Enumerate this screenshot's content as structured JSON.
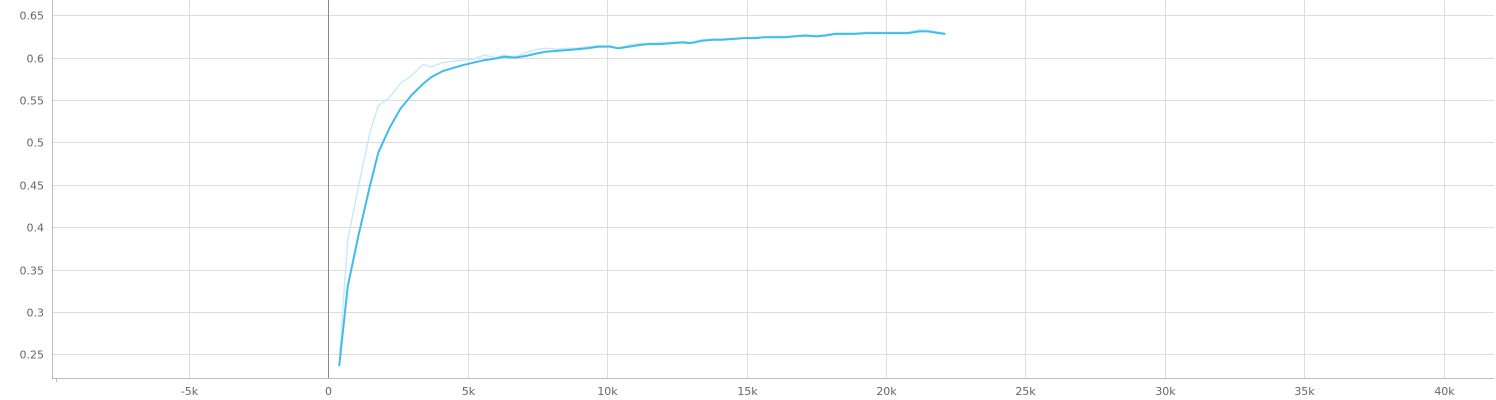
{
  "chart_data": {
    "type": "line",
    "title": "",
    "xlabel": "",
    "ylabel": "",
    "xlim": [
      -9900,
      41800
    ],
    "ylim": [
      0.222,
      0.668
    ],
    "x_ticks": [
      -5000,
      0,
      5000,
      10000,
      15000,
      20000,
      25000,
      30000,
      35000,
      40000
    ],
    "x_tick_labels": [
      "-5k",
      "0",
      "5k",
      "10k",
      "15k",
      "20k",
      "25k",
      "30k",
      "35k",
      "40k"
    ],
    "y_ticks": [
      0.25,
      0.3,
      0.35,
      0.4,
      0.45,
      0.5,
      0.55,
      0.6,
      0.65
    ],
    "y_tick_labels": [
      "0.25",
      "0.3",
      "0.35",
      "0.4",
      "0.45",
      "0.5",
      "0.55",
      "0.6",
      "0.65"
    ],
    "grid": true,
    "legend": "none",
    "series": [
      {
        "role": "raw",
        "color": "#c9ebf7",
        "x": [
          400,
          700,
          1100,
          1500,
          1800,
          2200,
          2600,
          3000,
          3400,
          3700,
          4100,
          4500,
          4800,
          5200,
          5600,
          6000,
          6300,
          6700,
          7100,
          7500,
          7800,
          8200,
          8600,
          8900,
          9300,
          9700,
          10100,
          10400,
          10800,
          11200,
          11500,
          11900,
          12300,
          12700,
          13000,
          13400,
          13800,
          14100,
          14500,
          14900,
          15300,
          15600,
          16000,
          16400,
          16700,
          17100,
          17500,
          17800,
          18200,
          18600,
          18900,
          19300,
          19700,
          20100,
          20400,
          20800,
          21200,
          21500,
          21900,
          22100
        ],
        "values": [
          0.245,
          0.385,
          0.45,
          0.512,
          0.543,
          0.553,
          0.57,
          0.579,
          0.592,
          0.589,
          0.594,
          0.596,
          0.597,
          0.598,
          0.603,
          0.6,
          0.603,
          0.601,
          0.606,
          0.61,
          0.611,
          0.61,
          0.611,
          0.611,
          0.613,
          0.614,
          0.614,
          0.611,
          0.615,
          0.617,
          0.617,
          0.618,
          0.618,
          0.619,
          0.618,
          0.621,
          0.622,
          0.622,
          0.623,
          0.623,
          0.624,
          0.624,
          0.625,
          0.625,
          0.625,
          0.627,
          0.626,
          0.627,
          0.629,
          0.629,
          0.629,
          0.63,
          0.63,
          0.63,
          0.63,
          0.63,
          0.633,
          0.632,
          0.63,
          0.629
        ]
      },
      {
        "role": "smoothed",
        "color": "#3fbdea",
        "x": [
          400,
          700,
          1100,
          1500,
          1800,
          2200,
          2600,
          3000,
          3400,
          3700,
          4100,
          4500,
          4800,
          5200,
          5600,
          6000,
          6300,
          6700,
          7100,
          7500,
          7800,
          8200,
          8600,
          8900,
          9300,
          9700,
          10100,
          10400,
          10800,
          11200,
          11500,
          11900,
          12300,
          12700,
          13000,
          13400,
          13800,
          14100,
          14500,
          14900,
          15300,
          15600,
          16000,
          16400,
          16700,
          17100,
          17500,
          17800,
          18200,
          18600,
          18900,
          19300,
          19700,
          20100,
          20400,
          20800,
          21200,
          21500,
          21900,
          22100
        ],
        "values": [
          0.237,
          0.33,
          0.392,
          0.449,
          0.488,
          0.517,
          0.54,
          0.556,
          0.569,
          0.577,
          0.584,
          0.588,
          0.591,
          0.594,
          0.597,
          0.599,
          0.601,
          0.6,
          0.602,
          0.605,
          0.607,
          0.608,
          0.609,
          0.61,
          0.611,
          0.613,
          0.613,
          0.611,
          0.613,
          0.615,
          0.616,
          0.616,
          0.617,
          0.618,
          0.617,
          0.62,
          0.621,
          0.621,
          0.622,
          0.623,
          0.623,
          0.624,
          0.624,
          0.624,
          0.625,
          0.626,
          0.625,
          0.626,
          0.628,
          0.628,
          0.628,
          0.629,
          0.629,
          0.629,
          0.629,
          0.629,
          0.631,
          0.631,
          0.629,
          0.628
        ]
      }
    ]
  }
}
